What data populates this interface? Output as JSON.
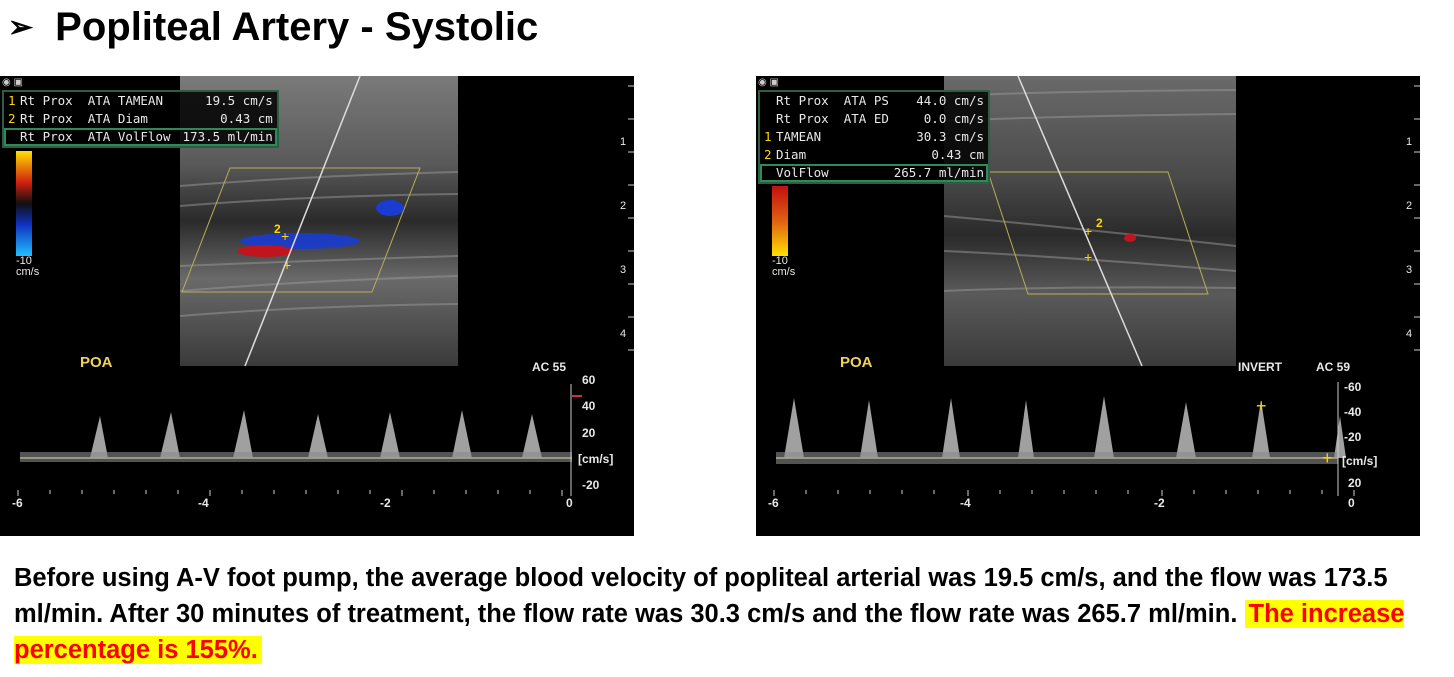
{
  "title": "Popliteal Artery - Systolic",
  "bullet_glyph": "➢",
  "before": {
    "measurements": [
      {
        "num": "1",
        "label": "Rt Prox  ATA TAMEAN",
        "value": "19.5 cm/s"
      },
      {
        "num": "2",
        "label": "Rt Prox  ATA Diam",
        "value": "0.43 cm"
      },
      {
        "num": "",
        "label": "Rt Prox  ATA VolFlow",
        "value": "173.5 ml/min"
      }
    ],
    "vessel_label": "POA",
    "ac_label": "AC 55",
    "velocity_scale": [
      "60",
      "40",
      "20",
      "[cm/s]",
      "-20"
    ],
    "time_scale": [
      "-6",
      "-4",
      "-2",
      "0"
    ],
    "color_bar_low": "-10",
    "color_bar_unit": "cm/s",
    "depth_scale": [
      "1",
      "2",
      "3",
      "4"
    ]
  },
  "after": {
    "measurements": [
      {
        "num": "",
        "label": "Rt Prox  ATA PS",
        "value": "44.0 cm/s"
      },
      {
        "num": "",
        "label": "Rt Prox  ATA ED",
        "value": "0.0 cm/s"
      },
      {
        "num": "1",
        "label": "TAMEAN",
        "value": "30.3 cm/s"
      },
      {
        "num": "2",
        "label": "Diam",
        "value": "0.43 cm"
      },
      {
        "num": "",
        "label": "VolFlow",
        "value": "265.7 ml/min"
      }
    ],
    "vessel_label": "POA",
    "invert_label": "INVERT",
    "ac_label": "AC 59",
    "velocity_scale": [
      "-60",
      "-40",
      "-20",
      "[cm/s]",
      "20"
    ],
    "time_scale": [
      "-6",
      "-4",
      "-2",
      "0"
    ],
    "color_bar_low": "-10",
    "color_bar_unit": "cm/s",
    "depth_scale": [
      "1",
      "2",
      "3",
      "4"
    ]
  },
  "caption": {
    "text": "Before using A-V foot pump, the average blood velocity of popliteal  arterial was 19.5 cm/s, and the flow was 173.5 ml/min. After 30 minutes of treatment, the flow rate was 30.3 cm/s and the flow rate was 265.7 ml/min.",
    "highlight": "The increase percentage is 155%."
  },
  "colors": {
    "highlight_bg": "#ffff00",
    "highlight_text": "#ff0000",
    "overlay_yellow": "#f0d25a",
    "flow_red": "#c0141e",
    "flow_blue": "#1a3cd0"
  }
}
